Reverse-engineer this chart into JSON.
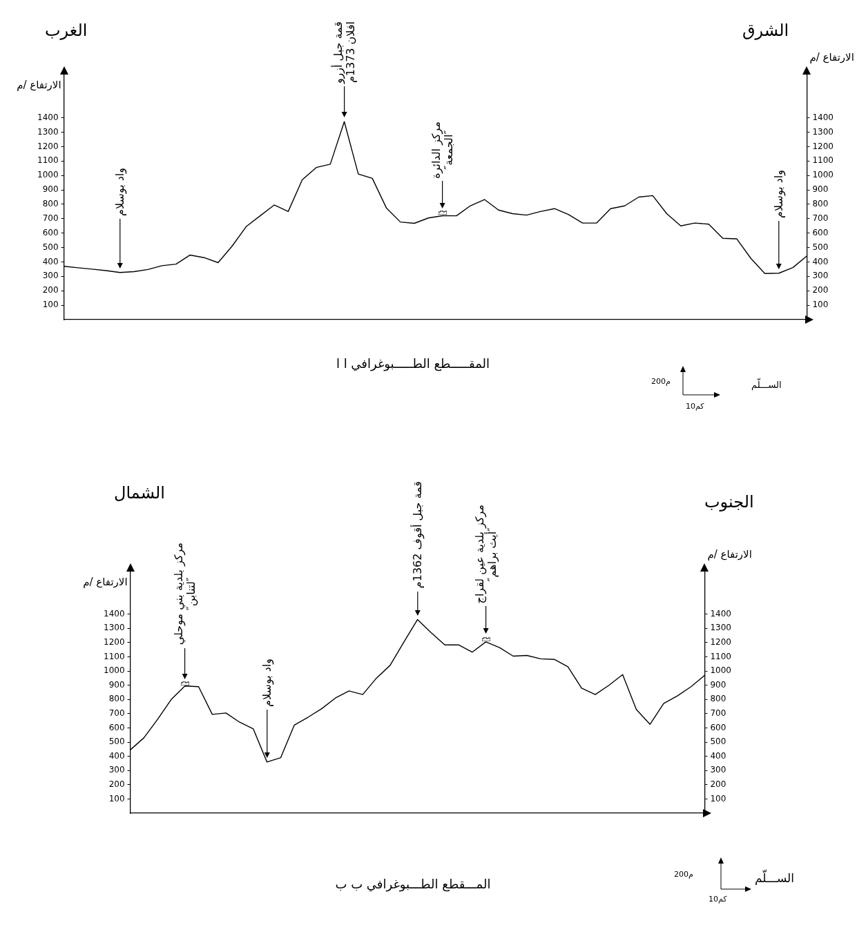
{
  "chart_data": [
    {
      "type": "line",
      "title": "المقـــــطع الطـــــبوغرافي ا ا",
      "ylabel": "الارتفاع /م",
      "y2label": "الارتفاع /م",
      "categories": [
        null,
        null,
        null,
        null,
        null,
        null,
        null,
        null,
        null,
        null,
        null,
        null,
        null,
        null,
        null,
        null,
        null,
        null,
        null,
        null,
        null,
        null,
        null,
        null,
        null,
        null,
        null,
        null,
        null,
        null,
        null,
        null,
        null,
        null,
        null,
        null,
        null,
        null,
        null,
        null,
        null,
        null,
        null,
        null,
        null,
        null,
        null,
        null,
        null,
        null,
        null,
        null,
        null,
        null
      ],
      "series": [
        {
          "color": "#000000",
          "values": [
            370,
            360,
            350,
            340,
            327,
            333,
            348,
            374,
            385,
            448,
            430,
            395,
            510,
            645,
            720,
            795,
            750,
            970,
            1055,
            1078,
            1373,
            1010,
            980,
            775,
            677,
            668,
            705,
            721,
            720,
            790,
            833,
            760,
            735,
            725,
            750,
            770,
            728,
            670,
            670,
            770,
            789,
            850,
            860,
            735,
            650,
            670,
            662,
            564,
            560,
            425,
            320,
            322,
            361,
            442
          ]
        }
      ],
      "ylim": [
        0,
        1700
      ],
      "yticks": [
        100,
        200,
        300,
        400,
        500,
        600,
        700,
        800,
        900,
        1000,
        1100,
        1200,
        1300,
        1400
      ],
      "y2lim": [
        0,
        1700
      ],
      "y2ticks": [
        100,
        200,
        300,
        400,
        500,
        600,
        700,
        800,
        900,
        1000,
        1100,
        1200,
        1300,
        1400
      ],
      "tick_labels": "y",
      "grid": false,
      "legend": false,
      "marker": "none",
      "annotations": [
        "الغرب",
        "الشرق",
        "واد بوسلام",
        "قمة جبل أزرو\nافلان 1373م",
        "مركز الدائرة\n″الجمعة″",
        "واد بوسلام",
        "الســـلّم",
        "200م",
        "10كم"
      ]
    },
    {
      "type": "line",
      "title": "المـــقطع الطـــبوغرافي ب ب",
      "ylabel": "الارتفاع /م",
      "y2label": "الارتفاع /م",
      "categories": [
        null,
        null,
        null,
        null,
        null,
        null,
        null,
        null,
        null,
        null,
        null,
        null,
        null,
        null,
        null,
        null,
        null,
        null,
        null,
        null,
        null,
        null,
        null,
        null,
        null,
        null,
        null,
        null,
        null,
        null,
        null,
        null,
        null,
        null,
        null,
        null,
        null,
        null,
        null,
        null,
        null,
        null,
        null
      ],
      "series": [
        {
          "color": "#000000",
          "values": [
            445,
            530,
            660,
            800,
            895,
            890,
            695,
            705,
            640,
            593,
            360,
            390,
            620,
            675,
            735,
            810,
            860,
            835,
            950,
            1040,
            1203,
            1362,
            1270,
            1184,
            1184,
            1133,
            1205,
            1165,
            1105,
            1110,
            1086,
            1082,
            1030,
            880,
            835,
            900,
            975,
            730,
            625,
            772,
            825,
            890,
            970
          ]
        }
      ],
      "ylim": [
        0,
        1700
      ],
      "yticks": [
        100,
        200,
        300,
        400,
        500,
        600,
        700,
        800,
        900,
        1000,
        1100,
        1200,
        1300,
        1400
      ],
      "y2lim": [
        0,
        1700
      ],
      "y2ticks": [
        100,
        200,
        300,
        400,
        500,
        600,
        700,
        800,
        900,
        1000,
        1100,
        1200,
        1300,
        1400
      ],
      "tick_labels": "y",
      "grid": false,
      "legend": false,
      "marker": "none",
      "annotations": [
        "الشمال",
        "الجنوب",
        "مركز بلدية بني موحلي\n″لتنابن″",
        "واد بوسلام",
        "قمة جبل أقوف  1362م",
        "مركز بلدية عين لقراج\n″أيث براهم″",
        "الســـلّم",
        "200م",
        "10كم"
      ]
    }
  ]
}
